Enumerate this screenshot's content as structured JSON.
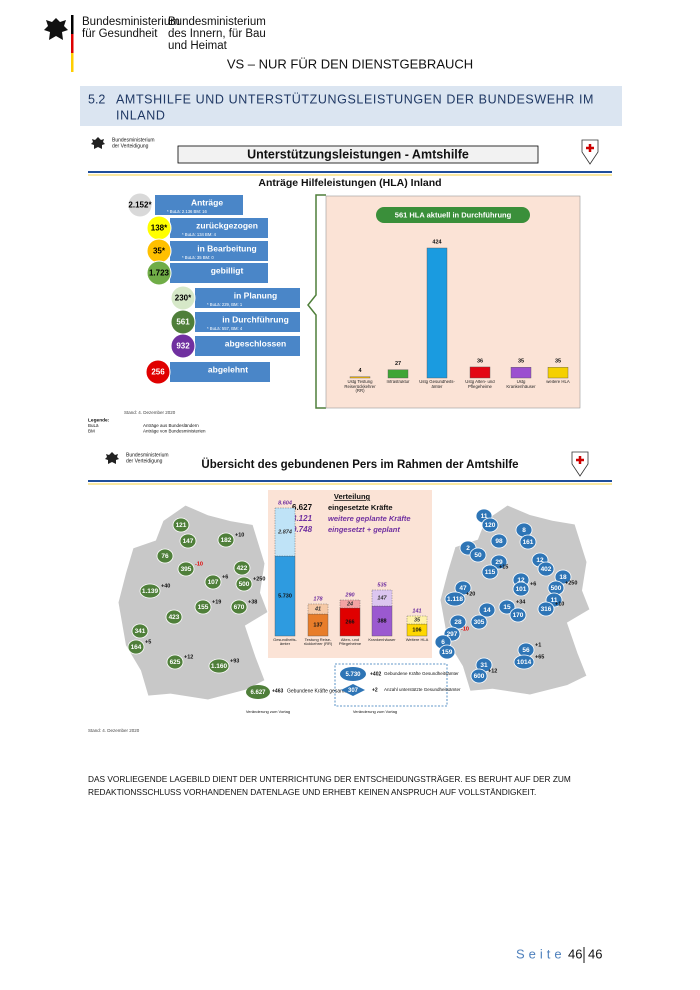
{
  "header": {
    "ministry_health": [
      "Bundesministerium",
      "für Gesundheit"
    ],
    "ministry_interior": [
      "Bundesministerium",
      "des Innern, für Bau",
      "und Heimat"
    ],
    "classification": "VS – NUR FÜR DEN DIENSTGEBRAUCH"
  },
  "section": {
    "number": "5.2",
    "title_lines": [
      "AMTSHILFE UND UNTERSTÜTZUNGSLEISTUNGEN DER BUNDESWEHR IM",
      "INLAND"
    ]
  },
  "slide1": {
    "org": [
      "Bundesministerium",
      "der Verteidigung"
    ],
    "title": "Unterstützungsleistungen - Amtshilfe",
    "subtitle": "Anträge Hilfeleistungen (HLA) Inland",
    "steps": [
      {
        "value": "2.152*",
        "label": "Anträge",
        "note": "* BuLä: 2.136 BM: 16"
      },
      {
        "value": "138*",
        "label": "zurückgezogen",
        "note": "* BuLä: 134 BM: 4"
      },
      {
        "value": "35*",
        "label": "in Bearbeitung",
        "note": "* BuLä: 35 BM: 0"
      },
      {
        "value": "1.723",
        "label": "gebilligt"
      },
      {
        "value": "230*",
        "label": "in Planung",
        "note": "* BuLä: 229, BM: 1"
      },
      {
        "value": "561",
        "label": "in Durchführung",
        "note": "* BuLä: 557, BM: 4"
      },
      {
        "value": "932",
        "label": "abgeschlossen"
      },
      {
        "value": "256",
        "label": "abgelehnt"
      }
    ],
    "chart": {
      "type": "bar",
      "banner": "561 HLA aktuell in Durchführung",
      "categories": [
        "Ustg Testung Reiserückkehrer (RR)",
        "Infrastruktur",
        "Ustg Gesundheits-ämter",
        "Ustg Alten- und Pflegeheime",
        "Ustg Krankenhäuser",
        "weitere HLA"
      ],
      "values": [
        4,
        27,
        424,
        36,
        35,
        35
      ],
      "colors": [
        "#f5b800",
        "#3fa535",
        "#1a9be0",
        "#e30613",
        "#9b4fd0",
        "#f5d000"
      ]
    },
    "stand": "Stand: 4. Dezember 2020",
    "legend_title": "Legende:",
    "legend": [
      {
        "abbr": "BuLä",
        "text": "Anträge aus Bundesländern"
      },
      {
        "abbr": "BM",
        "text": "Anträge von Bundesministerien"
      }
    ]
  },
  "slide2": {
    "org": [
      "Bundesministerium",
      "der Verteidigung"
    ],
    "title": "Übersicht des gebundenen Pers im Rahmen der Amtshilfe",
    "distribution": {
      "title": "Verteilung",
      "rows": [
        {
          "value": "6.627",
          "text": "eingesetzte Kräfte"
        },
        {
          "value": "3.121",
          "text": "weitere geplante Kräfte"
        },
        {
          "value": "9.748",
          "text": "eingesetzt + geplant"
        }
      ]
    },
    "columns": [
      {
        "label": "Gesundheits-ämter",
        "total": "8.604",
        "planned": "2.874",
        "deployed": "5.730"
      },
      {
        "label": "Testung Reise-rückkehrer (RR)",
        "total": "178",
        "planned": "41",
        "deployed": "137"
      },
      {
        "label": "Alten- und Pflegeheime",
        "total": "290",
        "planned": "24",
        "deployed": "266"
      },
      {
        "label": "Krankenhäuser",
        "total": "535",
        "planned": "147",
        "deployed": "388"
      },
      {
        "label": "Weitere HLA",
        "total": "141",
        "planned": "35",
        "deployed": "106"
      }
    ],
    "map_left": [
      {
        "count": "121"
      },
      {
        "count": "147"
      },
      {
        "count": "182",
        "change": "+10"
      },
      {
        "count": "76"
      },
      {
        "count": "395",
        "change": "-10"
      },
      {
        "count": "422"
      },
      {
        "count": "107",
        "change": "+6"
      },
      {
        "count": "500",
        "change": "+250"
      },
      {
        "count": "1.139",
        "change": "+40"
      },
      {
        "count": "155",
        "change": "+19"
      },
      {
        "count": "670",
        "change": "+38"
      },
      {
        "count": "423"
      },
      {
        "count": "341"
      },
      {
        "count": "164",
        "change": "+5"
      },
      {
        "count": "625",
        "change": "+12"
      },
      {
        "count": "1.160",
        "change": "+93"
      }
    ],
    "map_right": [
      {
        "count": "11"
      },
      {
        "count": "120"
      },
      {
        "count": "8"
      },
      {
        "count": "98"
      },
      {
        "count": "161"
      },
      {
        "count": "2"
      },
      {
        "count": "50"
      },
      {
        "count": "29"
      },
      {
        "count": "115",
        "change": "+15"
      },
      {
        "count": "12"
      },
      {
        "count": "402"
      },
      {
        "count": "12"
      },
      {
        "count": "18"
      },
      {
        "count": "47"
      },
      {
        "count": "101",
        "change": "+6"
      },
      {
        "count": "500",
        "change": "+250"
      },
      {
        "count": "1.118",
        "change": "+20"
      },
      {
        "count": "11"
      },
      {
        "count": "14"
      },
      {
        "count": "15",
        "change": "+34"
      },
      {
        "count": "316",
        "change": "+10"
      },
      {
        "count": "170"
      },
      {
        "count": "28"
      },
      {
        "count": "305"
      },
      {
        "count": "297",
        "change": "-10"
      },
      {
        "count": "6"
      },
      {
        "count": "159"
      },
      {
        "count": "56",
        "change": "+1"
      },
      {
        "count": "31"
      },
      {
        "count": "1014",
        "change": "+65"
      },
      {
        "count": "600",
        "change": "+12"
      }
    ],
    "key_total": {
      "value": "6.627",
      "change": "+463",
      "text": "Gebundene Kräfte gesamt",
      "note": "Veränderung zum Vortag"
    },
    "key_offices": {
      "staff_value": "5.730",
      "staff_change": "+402",
      "staff_text": "Gebundene Kräfte Gesundheitsämter",
      "offices_value": "307",
      "offices_change": "+2",
      "offices_text": "Anzahl unterstützte Gesundheitsämter",
      "note": "Veränderung zum Vortag"
    },
    "stand": "Stand: 4. Dezember 2020"
  },
  "footer": {
    "disclaimer_lines": [
      "DAS VORLIEGENDE LAGEBILD DIENT DER UNTERRICHTUNG DER ENTSCHEIDUNGSTRÄGER. ES BERUHT AUF DER ZUM",
      "REDAKTIONSSCHLUSS VORHANDENEN DATENLAGE UND ERHEBT KEINEN ANSPRUCH AUF VOLLSTÄNDIGKEIT."
    ],
    "page_word": "Seite",
    "page": "46",
    "pages": "46"
  }
}
